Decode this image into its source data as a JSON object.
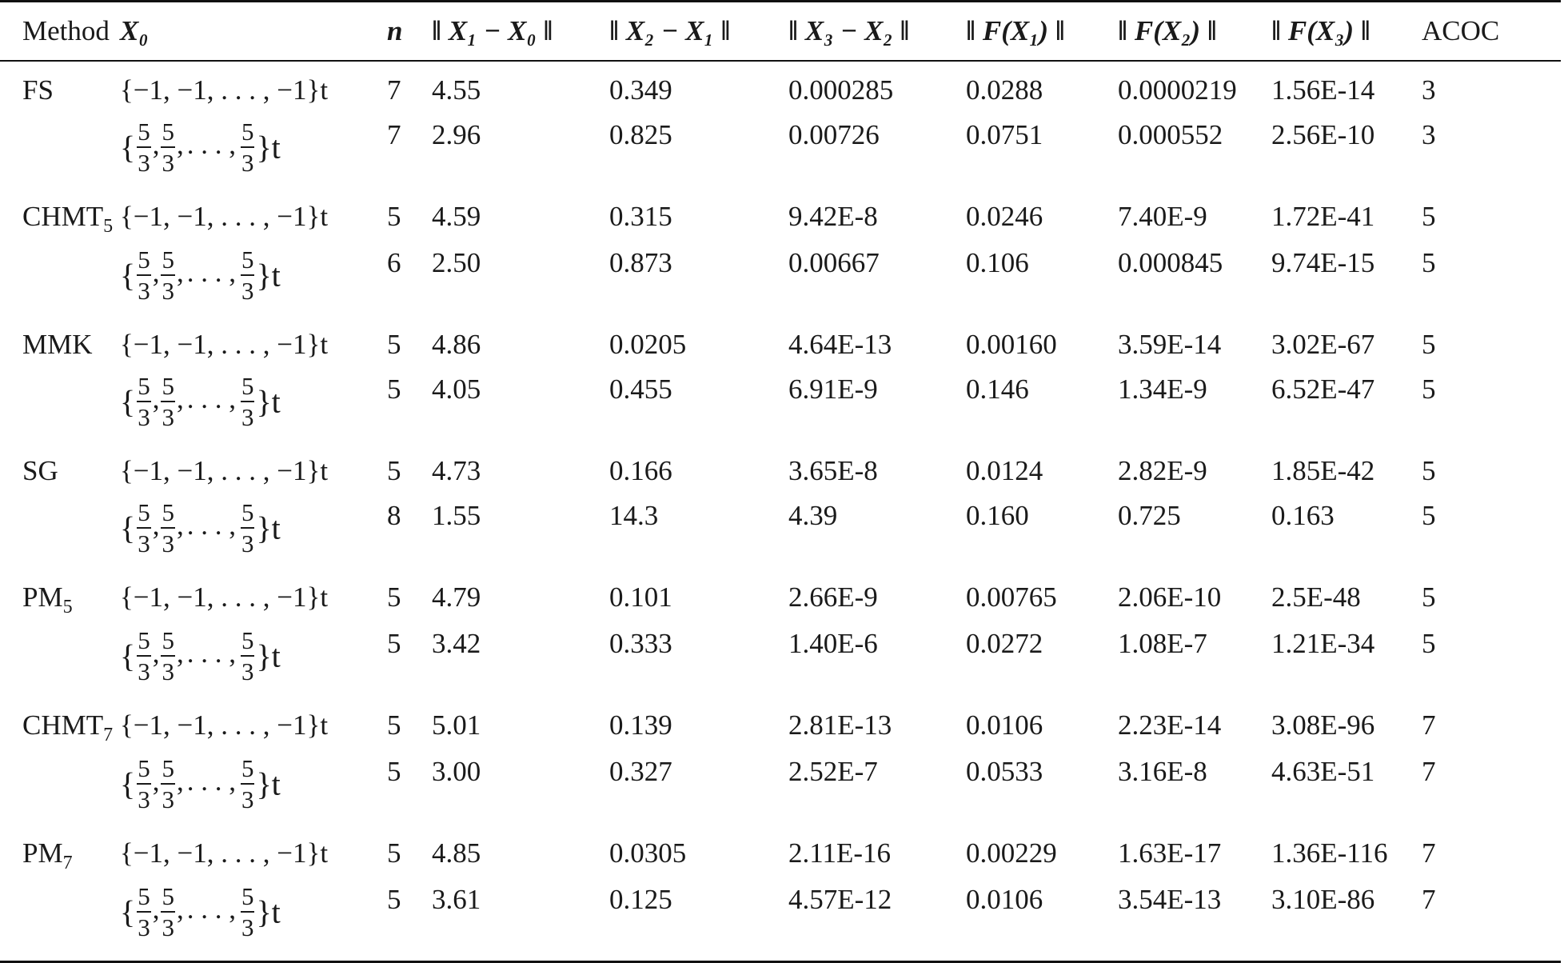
{
  "headers": [
    "Method",
    "X₀",
    "n",
    "‖ X₁ − X₀ ‖",
    "‖ X₂ − X₁ ‖",
    "‖ X₃ − X₂ ‖",
    "‖ F(X₁) ‖",
    "‖ F(X₂) ‖",
    "‖ F(X₃) ‖",
    "ACOC"
  ],
  "x0_labels": {
    "neg_one": "{−1, −1, . . . , −1}t",
    "frac_num": "5",
    "frac_den": "3",
    "frac_sep": ",",
    "dots": ". . . ,",
    "open": "{",
    "close": "}t"
  },
  "groups": [
    {
      "method": "FS",
      "method_sub": "",
      "rows": [
        {
          "n": "7",
          "c1": "4.55",
          "c2": "0.349",
          "c3": "0.000285",
          "c4": "0.0288",
          "c5": "0.0000219",
          "c6": "1.56E-14",
          "acoc": "3"
        },
        {
          "n": "7",
          "c1": "2.96",
          "c2": "0.825",
          "c3": "0.00726",
          "c4": "0.0751",
          "c5": "0.000552",
          "c6": "2.56E-10",
          "acoc": "3"
        }
      ]
    },
    {
      "method": "CHMT",
      "method_sub": "5",
      "rows": [
        {
          "n": "5",
          "c1": "4.59",
          "c2": "0.315",
          "c3": "9.42E-8",
          "c4": "0.0246",
          "c5": "7.40E-9",
          "c6": "1.72E-41",
          "acoc": "5"
        },
        {
          "n": "6",
          "c1": "2.50",
          "c2": "0.873",
          "c3": "0.00667",
          "c4": "0.106",
          "c5": "0.000845",
          "c6": "9.74E-15",
          "acoc": "5"
        }
      ]
    },
    {
      "method": "MMK",
      "method_sub": "",
      "rows": [
        {
          "n": "5",
          "c1": "4.86",
          "c2": "0.0205",
          "c3": "4.64E-13",
          "c4": "0.00160",
          "c5": "3.59E-14",
          "c6": "3.02E-67",
          "acoc": "5"
        },
        {
          "n": "5",
          "c1": "4.05",
          "c2": "0.455",
          "c3": "6.91E-9",
          "c4": "0.146",
          "c5": "1.34E-9",
          "c6": "6.52E-47",
          "acoc": "5"
        }
      ]
    },
    {
      "method": "SG",
      "method_sub": "",
      "rows": [
        {
          "n": "5",
          "c1": "4.73",
          "c2": "0.166",
          "c3": "3.65E-8",
          "c4": "0.0124",
          "c5": "2.82E-9",
          "c6": "1.85E-42",
          "acoc": "5"
        },
        {
          "n": "8",
          "c1": "1.55",
          "c2": "14.3",
          "c3": "4.39",
          "c4": "0.160",
          "c5": "0.725",
          "c6": "0.163",
          "acoc": "5"
        }
      ]
    },
    {
      "method": "PM",
      "method_sub": "5",
      "rows": [
        {
          "n": "5",
          "c1": "4.79",
          "c2": "0.101",
          "c3": "2.66E-9",
          "c4": "0.00765",
          "c5": "2.06E-10",
          "c6": "2.5E-48",
          "acoc": "5"
        },
        {
          "n": "5",
          "c1": "3.42",
          "c2": "0.333",
          "c3": "1.40E-6",
          "c4": "0.0272",
          "c5": "1.08E-7",
          "c6": "1.21E-34",
          "acoc": "5"
        }
      ]
    },
    {
      "method": "CHMT",
      "method_sub": "7",
      "rows": [
        {
          "n": "5",
          "c1": "5.01",
          "c2": "0.139",
          "c3": "2.81E-13",
          "c4": "0.0106",
          "c5": "2.23E-14",
          "c6": "3.08E-96",
          "acoc": "7"
        },
        {
          "n": "5",
          "c1": "3.00",
          "c2": "0.327",
          "c3": "2.52E-7",
          "c4": "0.0533",
          "c5": "3.16E-8",
          "c6": "4.63E-51",
          "acoc": "7"
        }
      ]
    },
    {
      "method": "PM",
      "method_sub": "7",
      "rows": [
        {
          "n": "5",
          "c1": "4.85",
          "c2": "0.0305",
          "c3": "2.11E-16",
          "c4": "0.00229",
          "c5": "1.63E-17",
          "c6": "1.36E-116",
          "acoc": "7"
        },
        {
          "n": "5",
          "c1": "3.61",
          "c2": "0.125",
          "c3": "4.57E-12",
          "c4": "0.0106",
          "c5": "3.54E-13",
          "c6": "3.10E-86",
          "acoc": "7"
        }
      ]
    }
  ]
}
